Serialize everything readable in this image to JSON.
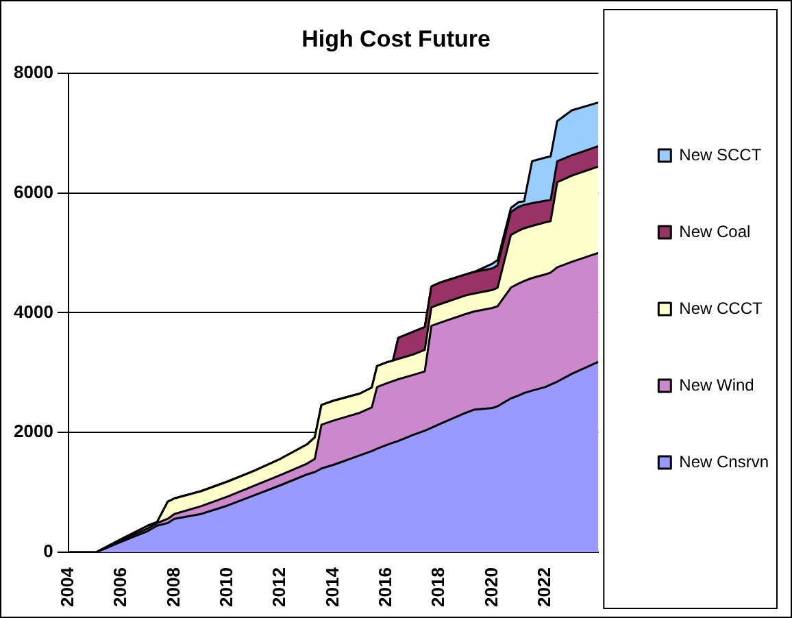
{
  "chart_data": {
    "type": "area",
    "title": "High Cost Future",
    "stacked": true,
    "grid": "y",
    "legend": "right",
    "xlim": [
      2004,
      2024
    ],
    "xticks": [
      2004,
      2006,
      2008,
      2010,
      2012,
      2014,
      2016,
      2018,
      2020,
      2022
    ],
    "ylim": [
      0,
      8000
    ],
    "yticks": [
      0,
      2000,
      4000,
      6000,
      8000
    ],
    "x": [
      2004,
      2005.05,
      2006,
      2007,
      2007.35,
      2007.75,
      2008,
      2009,
      2010,
      2011,
      2012,
      2013,
      2013.3,
      2013.55,
      2014,
      2015,
      2015.45,
      2015.65,
      2016,
      2016.25,
      2016.45,
      2017,
      2017.45,
      2017.7,
      2018,
      2019,
      2019.3,
      2020,
      2020.2,
      2020.7,
      2021,
      2021.2,
      2021.5,
      2022,
      2022.2,
      2022.45,
      2023,
      2024
    ],
    "series": [
      {
        "name": "New Cnsrvn",
        "color": "#9999ff",
        "values": [
          0,
          0,
          178,
          356,
          445,
          489,
          560,
          640,
          780,
          950,
          1120,
          1300,
          1340,
          1400,
          1460,
          1620,
          1690,
          1730,
          1790,
          1830,
          1860,
          1960,
          2030,
          2080,
          2140,
          2330,
          2380,
          2410,
          2440,
          2570,
          2620,
          2660,
          2700,
          2760,
          2800,
          2850,
          2980,
          3180
        ]
      },
      {
        "name": "New Wind",
        "color": "#cc88cc",
        "values": [
          0,
          0,
          22,
          44,
          44,
          71,
          80,
          130,
          150,
          160,
          170,
          180,
          220,
          730,
          740,
          710,
          730,
          1030,
          1030,
          1030,
          1030,
          1000,
          990,
          1700,
          1690,
          1650,
          1640,
          1670,
          1670,
          1850,
          1870,
          1870,
          1880,
          1880,
          1870,
          1910,
          1870,
          1820
        ]
      },
      {
        "name": "New CCCT",
        "color": "#ffffcc",
        "values": [
          0,
          0,
          22,
          45,
          18,
          285,
          260,
          250,
          250,
          250,
          270,
          320,
          360,
          330,
          330,
          320,
          330,
          350,
          350,
          340,
          340,
          340,
          360,
          310,
          310,
          310,
          300,
          300,
          310,
          880,
          880,
          880,
          870,
          870,
          860,
          1420,
          1440,
          1440
        ]
      },
      {
        "name": "New Coal",
        "color": "#993366",
        "values": [
          0,
          0,
          0,
          0,
          0,
          0,
          0,
          0,
          0,
          0,
          0,
          0,
          0,
          0,
          0,
          0,
          0,
          0,
          0,
          0,
          350,
          380,
          380,
          350,
          360,
          350,
          360,
          360,
          370,
          380,
          400,
          390,
          380,
          360,
          350,
          350,
          340,
          340
        ]
      },
      {
        "name": "New SCCT",
        "color": "#99ccff",
        "values": [
          0,
          0,
          0,
          0,
          0,
          0,
          0,
          0,
          0,
          0,
          0,
          0,
          0,
          0,
          0,
          0,
          0,
          0,
          0,
          0,
          0,
          0,
          0,
          0,
          0,
          0,
          0,
          80,
          90,
          70,
          80,
          60,
          700,
          720,
          730,
          670,
          750,
          730
        ]
      }
    ]
  }
}
